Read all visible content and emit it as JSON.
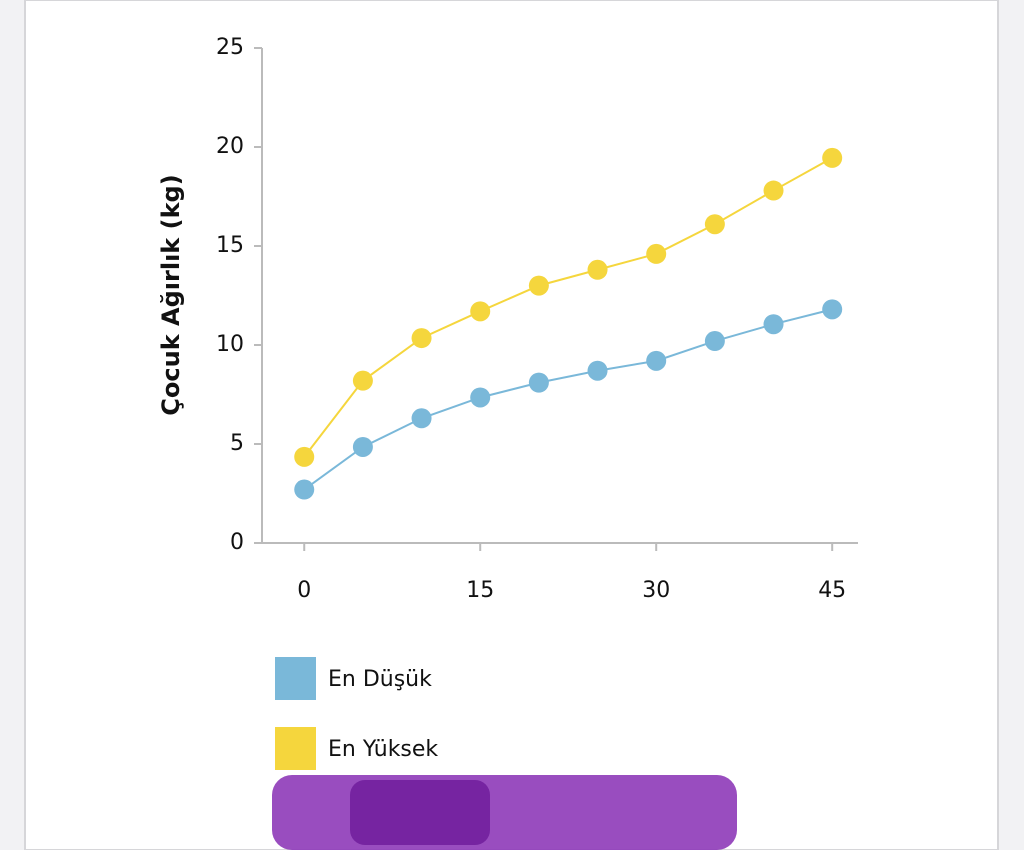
{
  "chart_data": {
    "type": "line",
    "y_label": "Çocuk Ağırlık (kg)",
    "x": [
      0,
      5,
      10,
      15,
      20,
      25,
      30,
      35,
      40,
      45
    ],
    "series": [
      {
        "name": "En Düşük",
        "color": "#7ab8d9",
        "values": [
          2.7,
          4.85,
          6.3,
          7.35,
          8.1,
          8.7,
          9.2,
          10.2,
          11.05,
          11.8
        ]
      },
      {
        "name": "En Yüksek",
        "color": "#f5d63d",
        "values": [
          4.35,
          8.2,
          10.35,
          11.7,
          13.0,
          13.8,
          14.6,
          16.1,
          17.8,
          19.45
        ]
      }
    ],
    "xlim": [
      -3.6,
      47.2
    ],
    "xticks": [
      0,
      15,
      30,
      45
    ],
    "ylim": [
      0,
      25
    ],
    "yticks": [
      0,
      5,
      10,
      15,
      20,
      25
    ],
    "grid": false
  }
}
